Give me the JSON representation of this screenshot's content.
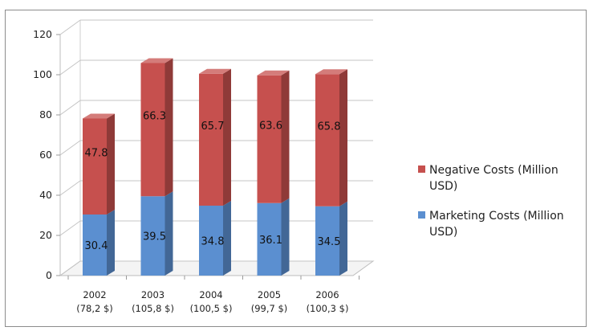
{
  "chart_data": {
    "type": "bar",
    "stacked": true,
    "three_d": true,
    "categories": [
      "2002",
      "2003",
      "2004",
      "2005",
      "2006"
    ],
    "category_sublabels": [
      "(78,2 $)",
      "(105,8 $)",
      "(100,5 $)",
      "(99,7 $)",
      "(100,3 $)"
    ],
    "series": [
      {
        "name": "Marketing Costs (Million USD)",
        "values": [
          30.4,
          39.5,
          34.8,
          36.1,
          34.5
        ],
        "color": "#5b8fd0"
      },
      {
        "name": "Negative Costs (Million USD)",
        "values": [
          47.8,
          66.3,
          65.7,
          63.6,
          65.8
        ],
        "color": "#c6504e"
      }
    ],
    "data_labels": {
      "marketing": [
        "30.4",
        "39.5",
        "34.8",
        "36.1",
        "34.5"
      ],
      "negative": [
        "47.8",
        "66.3",
        "65.7",
        "63.6",
        "65.8"
      ]
    },
    "ylim": [
      0,
      120
    ],
    "yticks": [
      "0",
      "20",
      "40",
      "60",
      "80",
      "100",
      "120"
    ],
    "legend": {
      "placement": "right",
      "entries": [
        {
          "line1": "Negative Costs (Million",
          "line2": "USD)",
          "color": "#c6504e"
        },
        {
          "line1": "Marketing Costs (Million",
          "line2": "USD)",
          "color": "#5b8fd0"
        }
      ]
    },
    "grid": true
  }
}
